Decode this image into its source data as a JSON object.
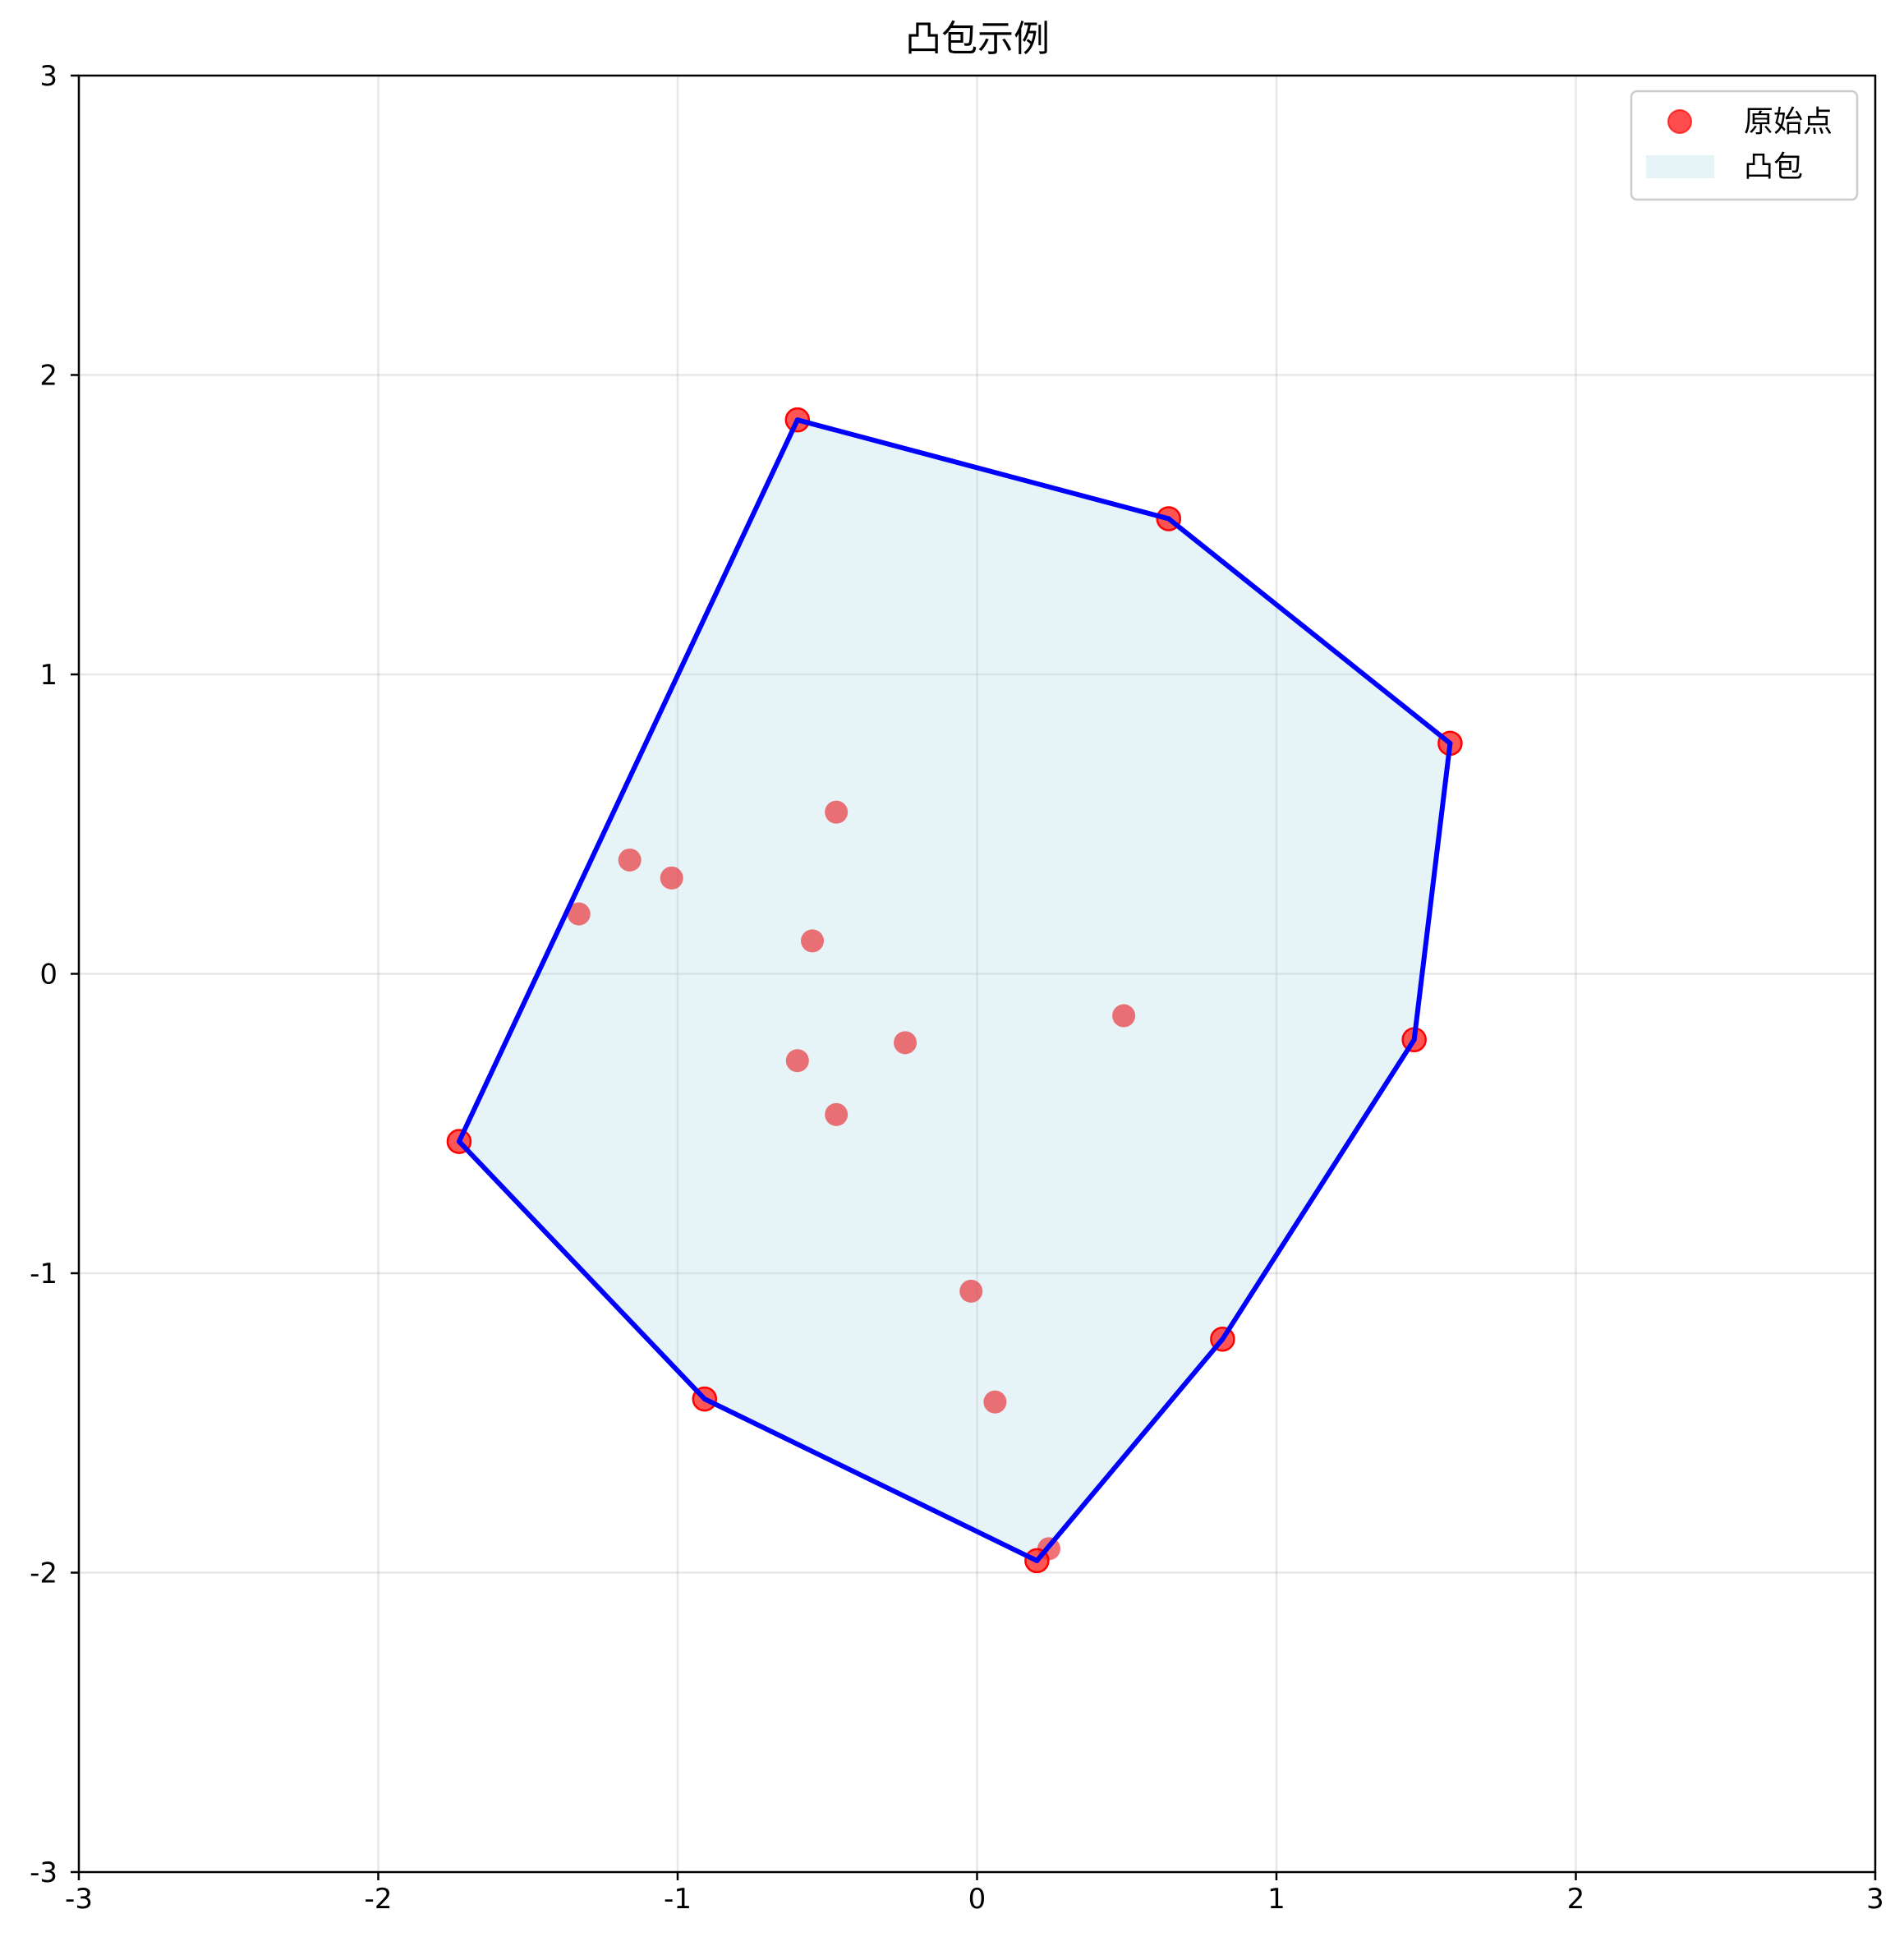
{
  "chart_data": {
    "type": "scatter",
    "title": "凸包示例",
    "xlabel": "",
    "ylabel": "",
    "xlim": [
      -3,
      3
    ],
    "ylim": [
      -3,
      3
    ],
    "xticks": [
      "-3",
      "-2",
      "-1",
      "0",
      "1",
      "2",
      "3"
    ],
    "yticks": [
      "-3",
      "-2",
      "-1",
      "0",
      "1",
      "2",
      "3"
    ],
    "grid": true,
    "legend_position": "top-right",
    "series": [
      {
        "name": "原始点",
        "kind": "scatter",
        "color": "#e8373d",
        "points": [
          [
            -0.6,
            1.85
          ],
          [
            0.64,
            1.52
          ],
          [
            1.58,
            0.77
          ],
          [
            -0.47,
            0.54
          ],
          [
            -1.16,
            0.38
          ],
          [
            -1.02,
            0.32
          ],
          [
            -1.33,
            0.2
          ],
          [
            -0.55,
            0.11
          ],
          [
            0.49,
            -0.14
          ],
          [
            1.46,
            -0.22
          ],
          [
            -0.24,
            -0.23
          ],
          [
            -0.6,
            -0.29
          ],
          [
            -0.47,
            -0.47
          ],
          [
            -1.73,
            -0.56
          ],
          [
            -0.02,
            -1.06
          ],
          [
            0.82,
            -1.22
          ],
          [
            -0.91,
            -1.42
          ],
          [
            0.06,
            -1.43
          ],
          [
            0.24,
            -1.92
          ],
          [
            0.2,
            -1.96
          ]
        ]
      },
      {
        "name": "凸包",
        "kind": "polygon",
        "fill": "#add8e6",
        "stroke": "#0000ff",
        "vertices": [
          [
            -0.6,
            1.85
          ],
          [
            0.64,
            1.52
          ],
          [
            1.58,
            0.77
          ],
          [
            1.46,
            -0.22
          ],
          [
            0.82,
            -1.22
          ],
          [
            0.2,
            -1.96
          ],
          [
            -0.91,
            -1.42
          ],
          [
            -1.73,
            -0.56
          ]
        ]
      }
    ]
  }
}
